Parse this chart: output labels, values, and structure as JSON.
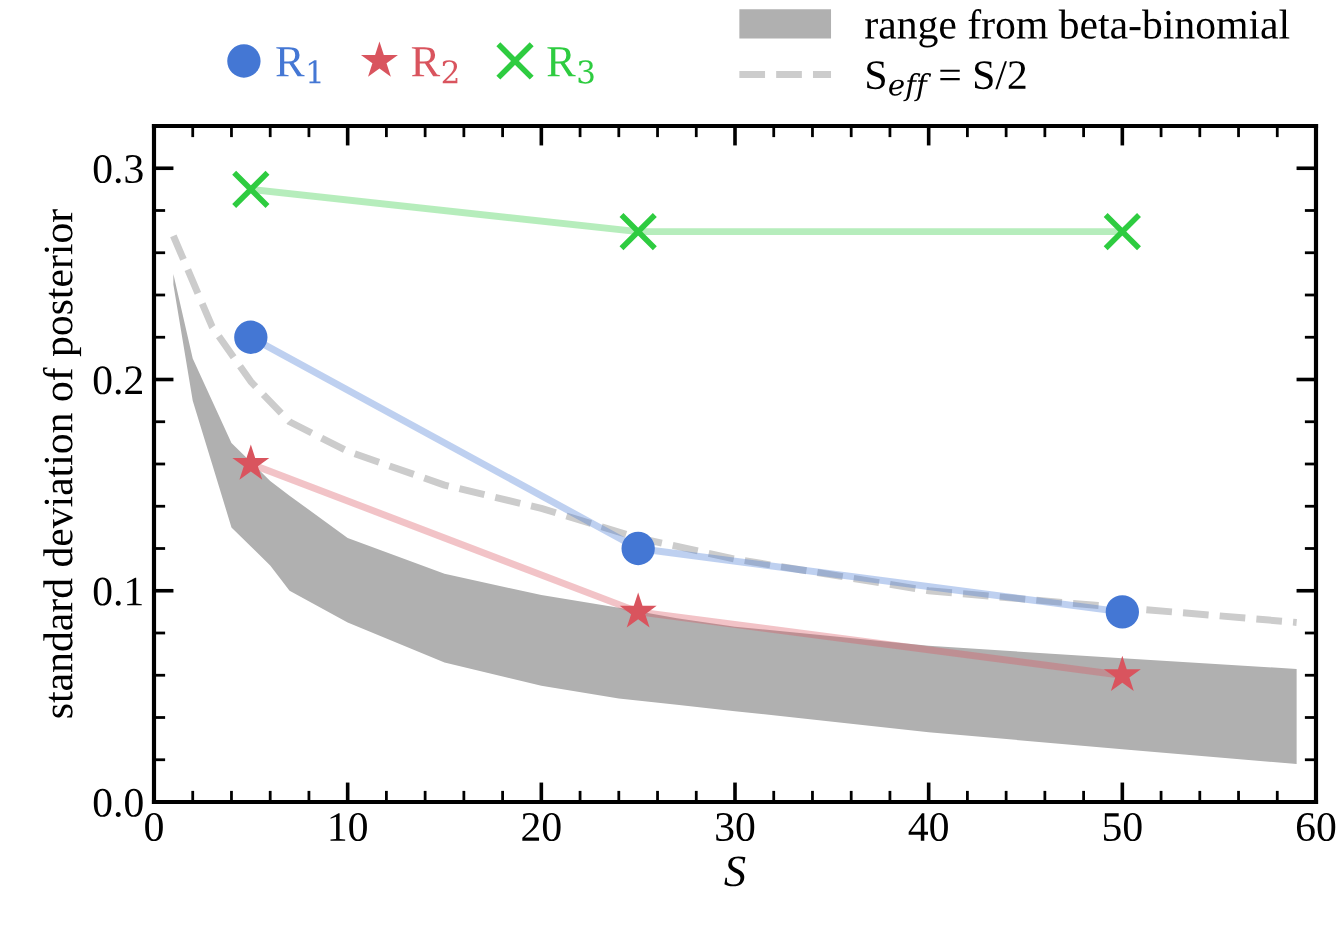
{
  "chart_data": {
    "type": "line",
    "xlabel": "S",
    "ylabel": "standard deviation of posterior",
    "xlim": [
      0,
      60
    ],
    "ylim": [
      0,
      0.32
    ],
    "xticks": [
      0,
      10,
      20,
      30,
      40,
      50,
      60
    ],
    "yticks": [
      {
        "value": 0,
        "label": "0.0"
      },
      0.1,
      0.2,
      0.3
    ],
    "grid": false,
    "legend": "top",
    "x": [
      5,
      25,
      50
    ],
    "series": [
      {
        "name": "range from beta-binomial",
        "type": "area",
        "color": "#b0b0b0",
        "x": [
          1,
          2,
          3,
          4,
          6,
          7,
          10,
          15,
          20,
          24,
          27,
          30,
          40,
          50,
          59
        ],
        "lower": [
          0.245,
          0.19,
          0.16,
          0.13,
          0.112,
          0.1,
          0.085,
          0.066,
          0.055,
          0.049,
          0.046,
          0.043,
          0.033,
          0.025,
          0.018
        ],
        "values": [
          null,
          null,
          null,
          null,
          null,
          null,
          null,
          null,
          null,
          null,
          null,
          null,
          null,
          null,
          null
        ],
        "upper": [
          0.25,
          0.21,
          0.19,
          0.17,
          0.152,
          0.145,
          0.125,
          0.108,
          0.098,
          0.092,
          0.087,
          0.083,
          0.074,
          0.068,
          0.063
        ]
      },
      {
        "name": "S$_{eff}$ = S/2",
        "line_style": "dashed",
        "marker": "none",
        "color": "#cccccc",
        "x": [
          1,
          3,
          5,
          7,
          10,
          15,
          20,
          25,
          30,
          40,
          50,
          59
        ],
        "values": [
          0.268,
          0.225,
          0.199,
          0.18,
          0.166,
          0.15,
          0.139,
          0.125,
          0.115,
          0.1,
          0.092,
          0.085
        ]
      },
      {
        "name": "R$_{1}$",
        "marker": "circle",
        "color": "#4477d4",
        "values": [
          0.22,
          0.12,
          0.09
        ]
      },
      {
        "name": "R$_{2}$",
        "marker": "star",
        "color": "#d9545e",
        "values": [
          0.16,
          0.09,
          0.06
        ]
      },
      {
        "name": "R$_{3}$",
        "marker": "cross",
        "color": "#2ecc40",
        "values": [
          0.29,
          0.27,
          0.27
        ]
      }
    ]
  }
}
